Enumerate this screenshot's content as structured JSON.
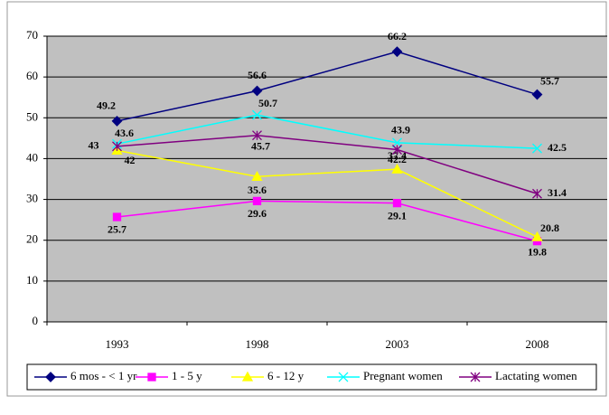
{
  "chart_data": {
    "type": "line",
    "categories": [
      "1993",
      "1998",
      "2003",
      "2008"
    ],
    "ylim": [
      0,
      70
    ],
    "yticks": [
      0,
      10,
      20,
      30,
      40,
      50,
      60,
      70
    ],
    "grid": true,
    "legend": "bottom",
    "series": [
      {
        "name": "6 mos - < 1 yr",
        "color": "#000080",
        "marker": "diamond",
        "values": [
          49.2,
          56.6,
          66.2,
          55.7
        ]
      },
      {
        "name": "1 - 5 y",
        "color": "#ff00ff",
        "marker": "square",
        "values": [
          25.7,
          29.6,
          29.1,
          19.8
        ]
      },
      {
        "name": "6 - 12 y",
        "color": "#ffff00",
        "marker": "triangle",
        "values": [
          42,
          35.6,
          37.4,
          20.8
        ]
      },
      {
        "name": "Pregnant women",
        "color": "#00ffff",
        "marker": "x",
        "values": [
          43.6,
          50.7,
          43.9,
          42.5
        ]
      },
      {
        "name": "Lactating women",
        "color": "#800080",
        "marker": "star",
        "values": [
          43,
          45.7,
          42.2,
          31.4
        ]
      }
    ]
  }
}
